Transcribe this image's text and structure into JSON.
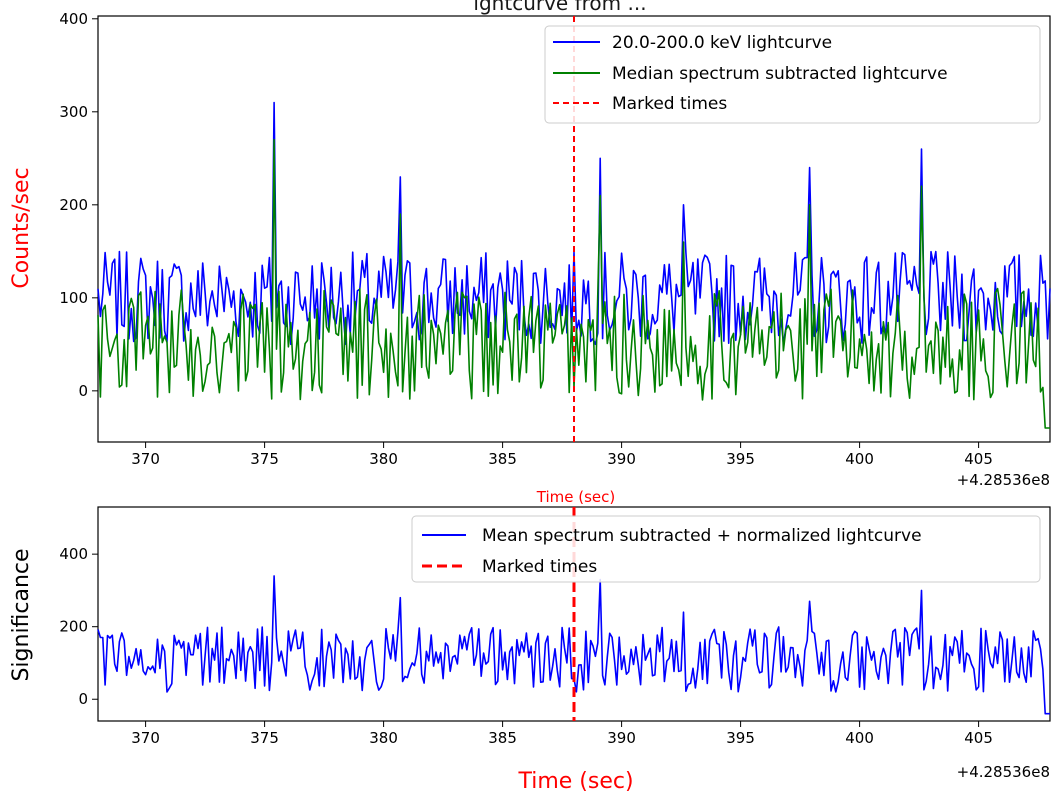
{
  "figure": {
    "top_title_fragment": "ightcurve from     ...",
    "axis_offset_label": "+4.28536e8"
  },
  "chart_data": [
    {
      "type": "line",
      "ylabel": "Counts/sec",
      "ylabel_color": "#ff0000",
      "xlabel": "Time (sec)",
      "xlabel_color": "#ff0000",
      "xlim": [
        368,
        408
      ],
      "ylim": [
        -55,
        403
      ],
      "x_ticks": [
        370,
        375,
        380,
        385,
        390,
        395,
        400,
        405
      ],
      "y_ticks": [
        0,
        100,
        200,
        300,
        400
      ],
      "grid": false,
      "legend_position": "top-right",
      "marked_time": 388,
      "series": [
        {
          "name": "20.0-200.0 keV lightcurve",
          "color": "#0000ff",
          "x_start": 368,
          "x_step": 0.1,
          "peaks": [
            [
              375.4,
              310
            ],
            [
              380.7,
              230
            ],
            [
              389.1,
              250
            ],
            [
              392.6,
              200
            ],
            [
              397.9,
              240
            ],
            [
              402.6,
              260
            ]
          ],
          "baseline_range": [
            50,
            150
          ]
        },
        {
          "name": "Median spectrum subtracted lightcurve",
          "color": "#008000",
          "x_start": 368,
          "x_step": 0.1,
          "peaks": [
            [
              375.4,
              270
            ],
            [
              380.7,
              190
            ],
            [
              389.1,
              210
            ],
            [
              392.6,
              160
            ],
            [
              397.9,
              200
            ],
            [
              402.6,
              220
            ]
          ],
          "baseline_range": [
            -10,
            110
          ],
          "end_value": -40
        },
        {
          "name": "Marked times",
          "color": "#ff0000",
          "style": "dashed"
        }
      ]
    },
    {
      "type": "line",
      "ylabel": "Significance",
      "ylabel_color": "#000000",
      "xlabel": "Time (sec)",
      "xlabel_color": "#ff0000",
      "xlim": [
        368,
        408
      ],
      "ylim": [
        -60,
        530
      ],
      "x_ticks": [
        370,
        375,
        380,
        385,
        390,
        395,
        400,
        405
      ],
      "y_ticks": [
        0,
        200,
        400
      ],
      "grid": false,
      "legend_position": "top-right",
      "marked_time": 388,
      "series": [
        {
          "name": "Mean spectrum subtracted + normalized lightcurve",
          "color": "#0000ff",
          "x_start": 368,
          "x_step": 0.1,
          "peaks": [
            [
              375.4,
              340
            ],
            [
              380.7,
              280
            ],
            [
              389.1,
              330
            ],
            [
              392.6,
              240
            ],
            [
              397.9,
              270
            ],
            [
              402.6,
              300
            ]
          ],
          "baseline_range": [
            20,
            200
          ],
          "end_value": -40
        },
        {
          "name": "Marked times",
          "color": "#ff0000",
          "style": "dashed"
        }
      ]
    }
  ]
}
